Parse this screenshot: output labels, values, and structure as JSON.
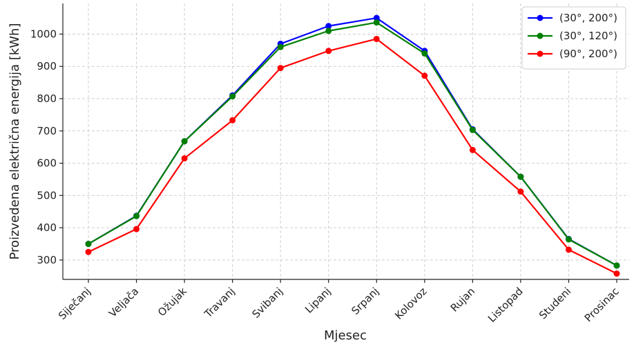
{
  "chart_data": {
    "type": "line",
    "xlabel": "Mjesec",
    "ylabel": "Proizvedena električna energija [kWh]",
    "categories": [
      "Siječanj",
      "Veljača",
      "Ožujak",
      "Travanj",
      "Svibanj",
      "Lipanj",
      "Srpanj",
      "Kolovoz",
      "Rujan",
      "Listopad",
      "Studeni",
      "Prosinac"
    ],
    "ylim": [
      240,
      1095
    ],
    "yticks": [
      300,
      400,
      500,
      600,
      700,
      800,
      900,
      1000
    ],
    "grid": true,
    "legend_position": "top-right",
    "series": [
      {
        "name": "(30°, 200°)",
        "color": "#0000ff",
        "values": [
          350,
          437,
          668,
          810,
          970,
          1025,
          1050,
          948,
          705,
          558,
          365,
          283
        ]
      },
      {
        "name": "(30°, 120°)",
        "color": "#008000",
        "values": [
          350,
          436,
          668,
          807,
          960,
          1010,
          1036,
          940,
          703,
          558,
          364,
          283
        ]
      },
      {
        "name": "(90°, 200°)",
        "color": "#ff0000",
        "values": [
          325,
          396,
          615,
          733,
          895,
          948,
          985,
          871,
          641,
          512,
          332,
          258
        ]
      }
    ]
  }
}
